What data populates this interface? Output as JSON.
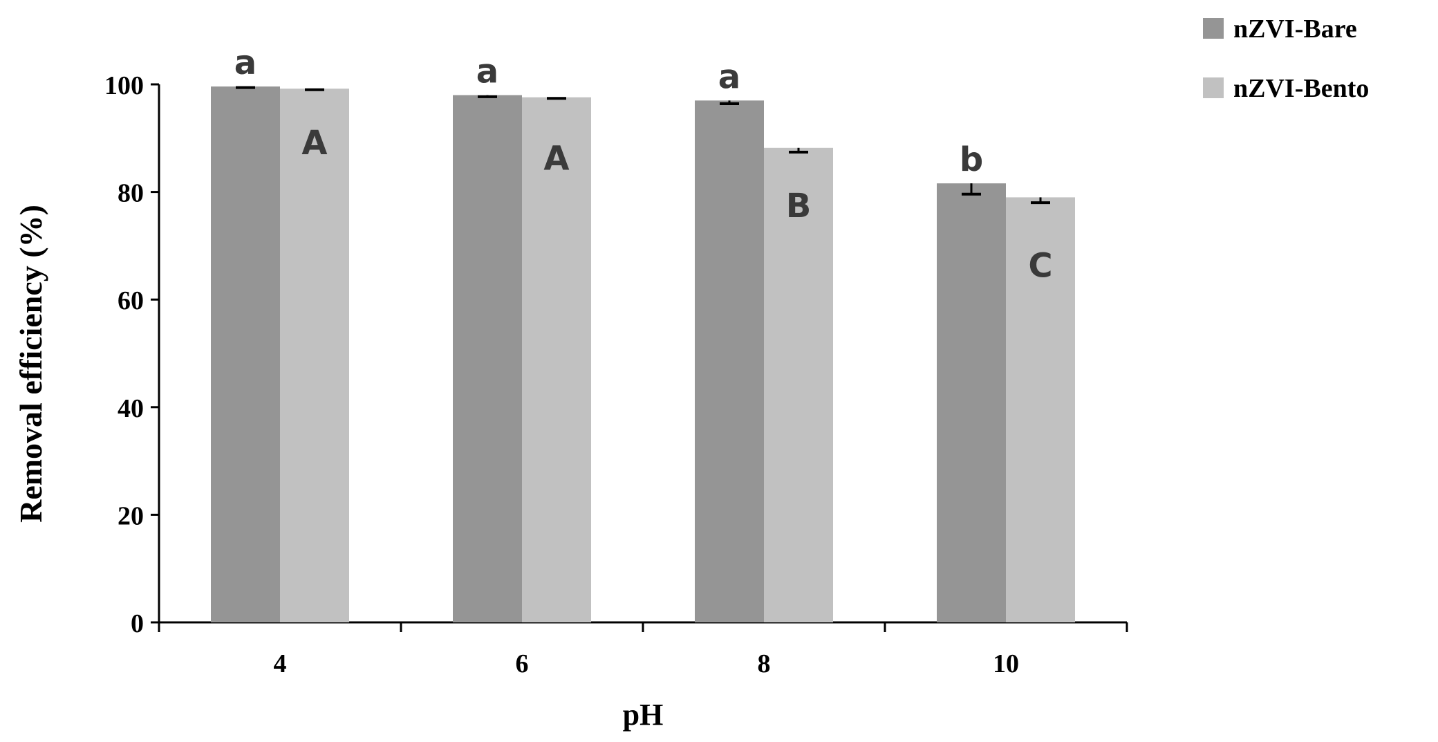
{
  "chart_data": {
    "type": "bar",
    "categories": [
      "4",
      "6",
      "8",
      "10"
    ],
    "series": [
      {
        "name": "nZVI-Bare",
        "color": "#959595",
        "values": [
          99.6,
          98.0,
          97.0,
          81.6
        ],
        "errors": [
          0.2,
          0.3,
          0.6,
          2.0
        ],
        "labels": [
          "a",
          "a",
          "a",
          "b"
        ]
      },
      {
        "name": "nZVI-Bento",
        "color": "#c1c1c1",
        "values": [
          99.2,
          97.6,
          88.2,
          79.0
        ],
        "errors": [
          0.2,
          0.2,
          0.8,
          1.0
        ],
        "labels": [
          "A",
          "A",
          "B",
          "C"
        ]
      }
    ],
    "xlabel": "pH",
    "ylabel": "Removal efficiency (%)",
    "ylim": [
      0,
      100
    ],
    "yticks": [
      "0",
      "20",
      "40",
      "60",
      "80",
      "100"
    ],
    "grid": false,
    "legend_position": "top-right"
  }
}
